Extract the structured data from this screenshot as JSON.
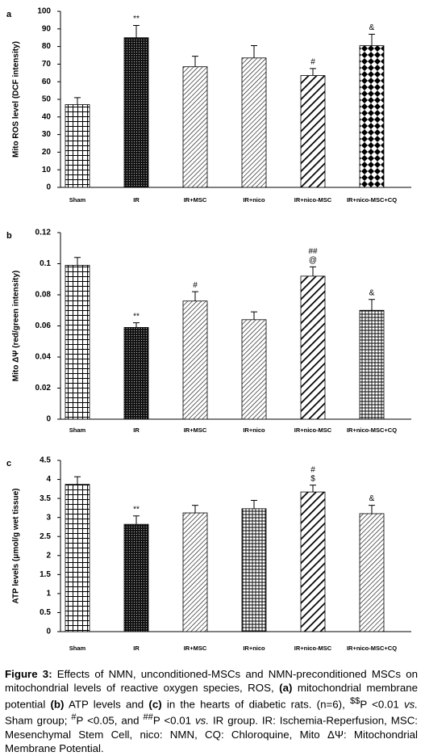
{
  "chart_data": [
    {
      "type": "bar",
      "panel": "a",
      "ylabel": "Mito ROS level (DCF intensity)",
      "categories": [
        "Sham",
        "IR",
        "IR+MSC",
        "IR+nico",
        "IR+nico-MSC",
        "IR+nico-MSC+CQ"
      ],
      "values": [
        47,
        85,
        68.5,
        73.5,
        63.5,
        80.5
      ],
      "errors": [
        4,
        7,
        6,
        7,
        4,
        6.5
      ],
      "annotations": [
        [],
        [
          "**"
        ],
        [],
        [],
        [
          "#"
        ],
        [
          "&"
        ]
      ],
      "patterns": [
        "grid",
        "dots",
        "diag",
        "diag",
        "diag-thick",
        "diamonds"
      ],
      "ylim": [
        0,
        100
      ],
      "yticks": [
        0,
        10,
        20,
        30,
        40,
        50,
        60,
        70,
        80,
        90,
        100
      ]
    },
    {
      "type": "bar",
      "panel": "b",
      "ylabel": "Mito ΔΨ (red/green intensity)",
      "categories": [
        "Sham",
        "IR",
        "IR+MSC",
        "IR+nico",
        "IR+nico-MSC",
        "IR+nico-MSC+CQ"
      ],
      "values": [
        0.099,
        0.059,
        0.076,
        0.064,
        0.092,
        0.07
      ],
      "errors": [
        0.005,
        0.003,
        0.006,
        0.005,
        0.006,
        0.007
      ],
      "annotations": [
        [],
        [
          "**"
        ],
        [
          "#"
        ],
        [],
        [
          "##",
          "@"
        ],
        [
          "&"
        ]
      ],
      "patterns": [
        "grid",
        "dots",
        "diag",
        "diag",
        "diag-thick",
        "hlines"
      ],
      "ylim": [
        0,
        0.12
      ],
      "yticks": [
        0,
        0.02,
        0.04,
        0.06,
        0.08,
        0.1,
        0.12
      ]
    },
    {
      "type": "bar",
      "panel": "c",
      "ylabel": "ATP levels (μmol/g wet tissue)",
      "categories": [
        "Sham",
        "IR",
        "IR+MSC",
        "IR+nico",
        "IR+nico-MSC",
        "IR+nico-MSC+CQ"
      ],
      "values": [
        3.87,
        2.82,
        3.12,
        3.23,
        3.67,
        3.1
      ],
      "errors": [
        0.2,
        0.22,
        0.2,
        0.22,
        0.18,
        0.22
      ],
      "annotations": [
        [],
        [
          "**"
        ],
        [],
        [],
        [
          "#",
          "$"
        ],
        [
          "&"
        ]
      ],
      "patterns": [
        "grid",
        "dots",
        "diag",
        "hlines",
        "diag-thick",
        "diag"
      ],
      "ylim": [
        0,
        4.5
      ],
      "yticks": [
        0,
        0.5,
        1,
        1.5,
        2,
        2.5,
        3,
        3.5,
        4,
        4.5
      ]
    }
  ],
  "caption": [
    "Figure 3:",
    " Effects of NMN, unconditioned-MSCs and NMN-preconditioned MSCs on mitochondrial levels of reactive oxygen species, ROS, ",
    "(a)",
    " mitochondrial membrane potential ",
    "(b)",
    " ATP levels and ",
    "(c)",
    " in the hearts of diabetic rats. (n=6), ",
    "$$",
    "P <0.01 ",
    "vs.",
    " Sham group; ",
    "#",
    "P <0.05, and ",
    "##",
    "P <0.01 ",
    "vs.",
    " IR group. IR: Ischemia-Reperfusion, MSC: Mesenchymal Stem Cell, nico: NMN, CQ: Chloroquine, Mito ΔΨ: Mitochondrial Membrane Potential."
  ]
}
